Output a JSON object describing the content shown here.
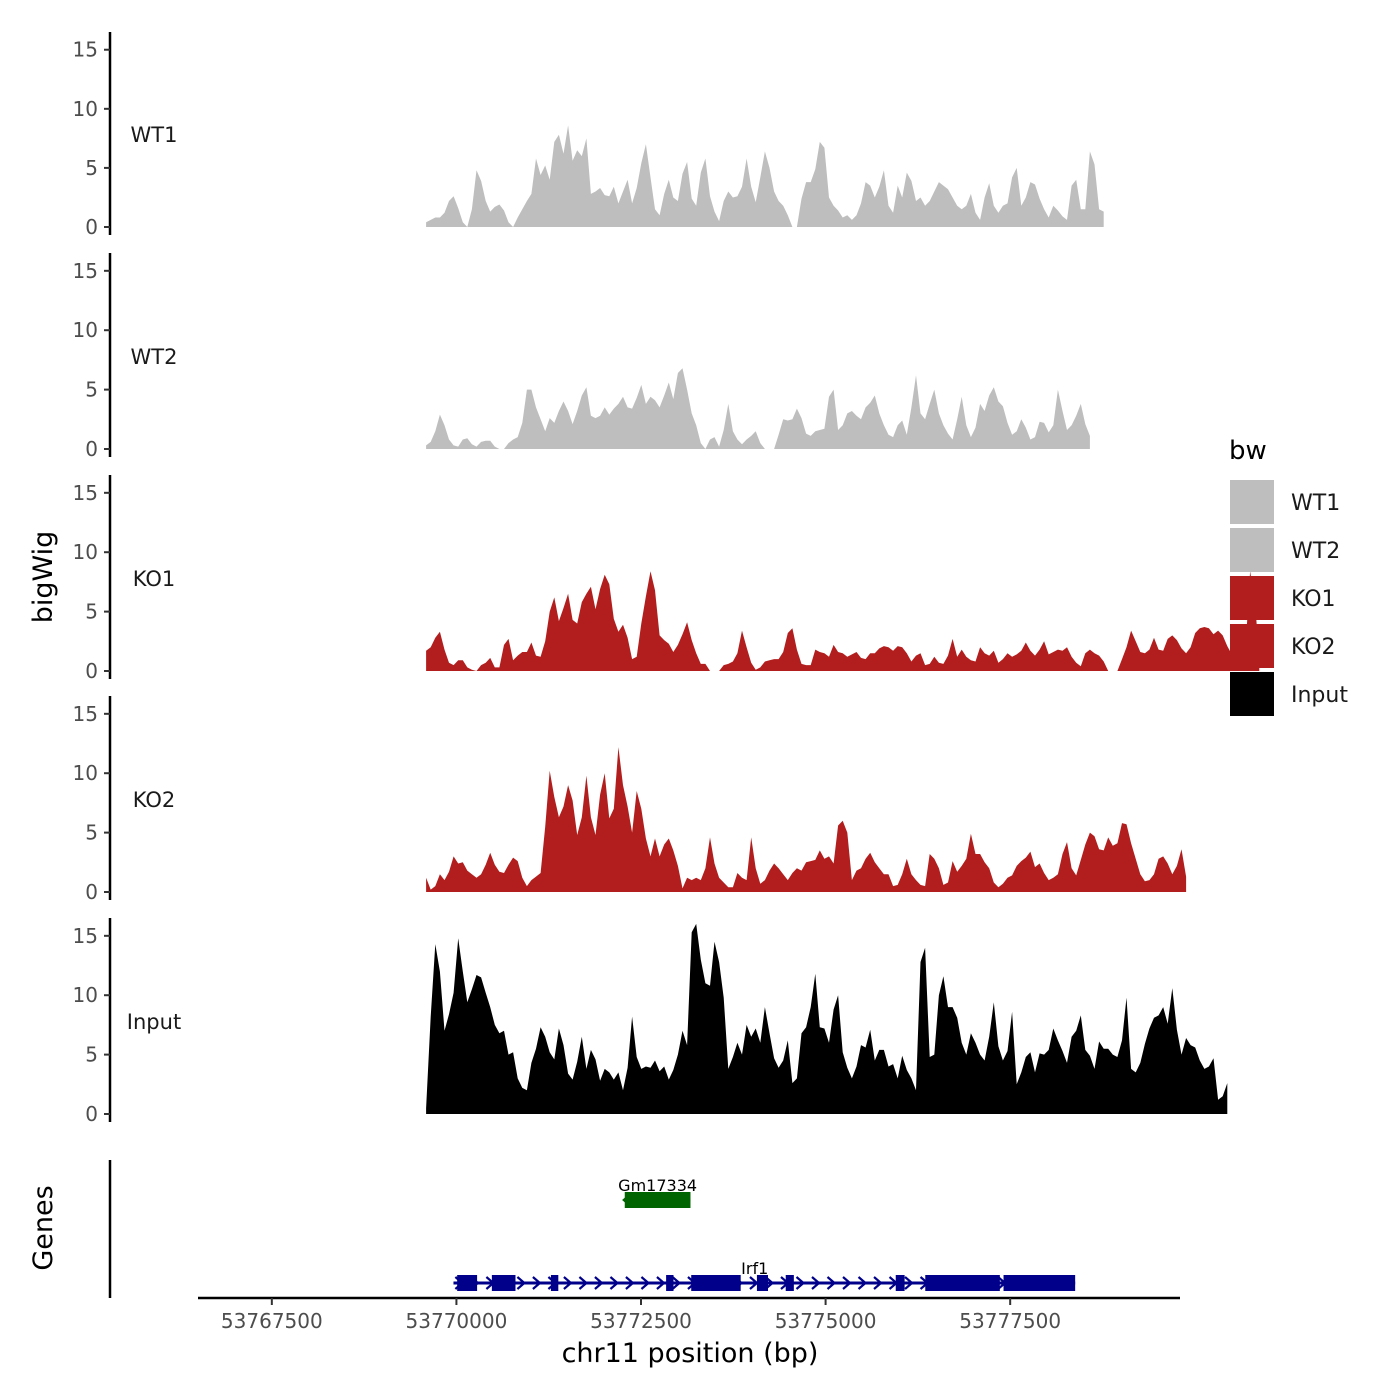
{
  "chart_data": {
    "type": "area",
    "y_axis_title": "bigWig",
    "genes_axis_title": "Genes",
    "x_axis_title": "chr11 position (bp)",
    "x_ticks": [
      "53767500",
      "53770000",
      "53772500",
      "53775000",
      "53777500"
    ],
    "x_tick_values": [
      53767500,
      53770000,
      53772500,
      53775000,
      53777500
    ],
    "x_range": [
      53766500,
      53779800
    ],
    "y_ticks": [
      "0",
      "5",
      "10",
      "15"
    ],
    "y_tick_values": [
      0,
      5,
      10,
      15
    ],
    "y_range": [
      0,
      16.5
    ],
    "legend": {
      "title": "bw",
      "entries": [
        "WT1",
        "WT2",
        "KO1",
        "KO2",
        "Input"
      ]
    },
    "colors": {
      "WT": "#bebebe",
      "KO": "#b21e1e",
      "Input": "#000000",
      "gene_minus": "#006400",
      "gene_plus": "#00008b"
    },
    "series": [
      {
        "name": "WT1",
        "color": "#bebebe",
        "x_start": 53769590,
        "x_step": 62,
        "values": [
          0.4,
          0.6,
          0.8,
          0.8,
          1.2,
          2.2,
          2.6,
          1.6,
          0.4,
          0,
          1.5,
          4.8,
          3.9,
          2.2,
          1.3,
          1.7,
          1.9,
          1.4,
          0.4,
          0,
          0.8,
          1.5,
          2.2,
          2.8,
          5.8,
          4.4,
          5.2,
          4.0,
          7.2,
          7.8,
          6.2,
          8.6,
          5.6,
          6.5,
          6.0,
          7.5,
          2.8,
          3.0,
          3.3,
          2.7,
          2.6,
          3.4,
          2.0,
          3.0,
          4.0,
          2.0,
          3.3,
          5.4,
          7.0,
          4.2,
          1.5,
          1.0,
          2.8,
          4.0,
          2.5,
          2.2,
          4.5,
          5.5,
          2.4,
          1.8,
          4.6,
          5.8,
          2.6,
          1.3,
          0.5,
          2.2,
          3.0,
          2.5,
          2.6,
          3.4,
          5.8,
          3.4,
          2.1,
          4.2,
          6.4,
          5.0,
          3.0,
          2.2,
          1.8,
          1.0,
          0,
          0,
          2.4,
          3.8,
          3.8,
          4.9,
          7.2,
          6.7,
          2.5,
          1.8,
          1.4,
          0.8,
          1.0,
          0.6,
          1.0,
          2.0,
          3.8,
          3.5,
          2.5,
          3.4,
          4.8,
          1.8,
          1.2,
          3.5,
          2.5,
          4.6,
          3.9,
          2.2,
          2.5,
          1.8,
          2.2,
          3.0,
          3.8,
          3.5,
          3.2,
          2.5,
          1.8,
          1.5,
          1.8,
          2.8,
          1.2,
          0.6,
          2.5,
          3.7,
          1.8,
          1.2,
          1.8,
          2.0,
          4.2,
          5.0,
          1.8,
          2.5,
          3.8,
          3.6,
          2.4,
          1.5,
          0.8,
          1.8,
          1.4,
          0.9,
          0.6,
          3.5,
          4.0,
          1.5,
          1.5,
          6.4,
          5.3,
          1.5,
          1.3
        ]
      },
      {
        "name": "WT2",
        "color": "#bebebe",
        "x_start": 53769590,
        "x_step": 62,
        "values": [
          0.3,
          0.6,
          1.5,
          2.9,
          2.0,
          0.8,
          0.3,
          0.2,
          0.8,
          0.9,
          0.4,
          0.2,
          0.6,
          0.7,
          0.7,
          0.2,
          0,
          0,
          0.5,
          0.8,
          1.0,
          2.2,
          5.0,
          5.0,
          3.5,
          2.5,
          1.5,
          2.6,
          2.2,
          3.2,
          4.0,
          3.2,
          2.1,
          3.2,
          4.5,
          5.2,
          2.8,
          2.6,
          2.8,
          3.5,
          2.9,
          3.4,
          3.8,
          4.4,
          3.5,
          3.4,
          4.3,
          5.4,
          3.8,
          4.4,
          4.1,
          3.5,
          4.5,
          5.6,
          4.2,
          6.4,
          6.8,
          5.0,
          3.0,
          2.0,
          0.5,
          0,
          0.8,
          1.0,
          0.2,
          1.6,
          3.8,
          1.5,
          0.8,
          0.4,
          0.8,
          1.1,
          1.5,
          0.5,
          0,
          0,
          0,
          1.2,
          2.5,
          2.4,
          2.5,
          3.4,
          2.6,
          1.3,
          1.1,
          1.5,
          1.6,
          1.7,
          4.4,
          5.0,
          1.6,
          2.0,
          3.0,
          3.2,
          2.8,
          2.5,
          3.5,
          3.9,
          4.5,
          3.0,
          2.0,
          1.2,
          1.0,
          2.0,
          2.4,
          1.2,
          3.5,
          6.2,
          3.0,
          2.5,
          3.8,
          5.0,
          3.0,
          2.0,
          1.3,
          0.8,
          2.5,
          4.4,
          2.0,
          1.0,
          1.8,
          3.8,
          3.2,
          4.5,
          5.2,
          4.0,
          3.6,
          2.2,
          1.2,
          1.5,
          2.5,
          1.8,
          0.8,
          1.0,
          2.3,
          2.2,
          1.4,
          2.0,
          5.0,
          3.2,
          1.6,
          2.0,
          2.8,
          3.8,
          2.1,
          1.1
        ]
      },
      {
        "name": "KO1",
        "color": "#b21e1e",
        "x_start": 53769590,
        "x_step": 62,
        "values": [
          1.7,
          2.0,
          2.8,
          3.3,
          1.8,
          0.7,
          0.5,
          0.9,
          0.9,
          0.3,
          0.1,
          0,
          0.5,
          0.7,
          1.1,
          0.3,
          0.3,
          2.2,
          2.7,
          0.9,
          1.3,
          1.6,
          1.6,
          2.4,
          1.3,
          1.2,
          2.5,
          5.0,
          6.2,
          4.2,
          5.3,
          6.5,
          4.3,
          4.0,
          5.8,
          6.5,
          7.1,
          5.2,
          6.9,
          8.1,
          7.3,
          4.4,
          3.3,
          3.9,
          2.8,
          1.0,
          1.2,
          4.0,
          6.3,
          8.4,
          6.8,
          3.0,
          2.6,
          2.3,
          1.6,
          2.2,
          3.1,
          4.1,
          2.6,
          1.5,
          0.6,
          0.6,
          0,
          0,
          0,
          0.5,
          0.6,
          0.8,
          1.5,
          3.4,
          2.0,
          0.7,
          0.1,
          0.3,
          0.8,
          0.9,
          1.0,
          1.0,
          1.6,
          3.2,
          3.6,
          1.8,
          0.6,
          0.5,
          0.5,
          1.8,
          1.6,
          1.5,
          1.2,
          2.2,
          1.6,
          1.5,
          1.2,
          1.4,
          1.6,
          1.1,
          1.0,
          1.5,
          1.5,
          1.9,
          2.1,
          2.0,
          1.7,
          2.1,
          2.0,
          1.5,
          0.8,
          1.3,
          1.5,
          0.5,
          0.6,
          1.2,
          0.7,
          0.6,
          1.3,
          2.7,
          1.2,
          1.8,
          1.2,
          0.9,
          0.8,
          2.0,
          1.5,
          1.3,
          1.7,
          0.7,
          1.0,
          1.5,
          1.2,
          1.4,
          1.7,
          2.4,
          1.7,
          1.3,
          1.8,
          2.5,
          1.4,
          1.6,
          1.8,
          1.7,
          2.0,
          1.2,
          0.7,
          0.4,
          1.5,
          1.8,
          1.5,
          1.3,
          0.8,
          0,
          0,
          0,
          1.0,
          2.0,
          3.4,
          2.5,
          1.6,
          1.5,
          1.8,
          2.8,
          1.8,
          1.7,
          2.7,
          3.0,
          2.6,
          1.9,
          1.5,
          2.0,
          3.2,
          3.6,
          3.7,
          3.6,
          3.1,
          3.4,
          3.0,
          2.1,
          1.4,
          1.2,
          1.0,
          2.0,
          8.4,
          6.0,
          1.2
        ]
      },
      {
        "name": "KO2",
        "color": "#b21e1e",
        "x_start": 53769590,
        "x_step": 62,
        "values": [
          1.2,
          0.2,
          0.5,
          1.5,
          1.0,
          1.7,
          3.0,
          2.4,
          2.5,
          1.8,
          1.5,
          1.2,
          1.5,
          2.3,
          3.3,
          2.3,
          1.7,
          1.6,
          2.3,
          2.9,
          2.6,
          1.2,
          0.5,
          1.0,
          1.3,
          1.6,
          5.5,
          10.2,
          8.0,
          6.3,
          7.2,
          9.0,
          7.7,
          4.8,
          6.3,
          9.8,
          6.3,
          4.8,
          8.2,
          10.0,
          6.2,
          7.0,
          12.2,
          9.0,
          7.2,
          5.0,
          8.5,
          7.0,
          4.5,
          3.0,
          4.5,
          3.0,
          4.0,
          4.5,
          3.5,
          2.2,
          0.3,
          1.2,
          1.0,
          1.2,
          1.0,
          2.0,
          4.6,
          2.4,
          1.2,
          0.8,
          0.4,
          0.4,
          1.6,
          1.2,
          1.0,
          4.6,
          2.0,
          0.7,
          1.0,
          1.8,
          2.4,
          2.0,
          1.5,
          1.0,
          1.6,
          2.0,
          1.8,
          2.5,
          2.6,
          2.7,
          3.5,
          2.8,
          3.0,
          2.4,
          5.6,
          6.0,
          5.0,
          1.0,
          1.8,
          2.0,
          2.8,
          3.3,
          2.5,
          2.0,
          1.5,
          1.5,
          0.5,
          0.6,
          1.5,
          2.8,
          1.5,
          1.0,
          0.6,
          0.5,
          3.2,
          2.8,
          2.0,
          0.6,
          0.8,
          2.6,
          1.7,
          2.2,
          2.8,
          4.9,
          3.2,
          3.2,
          2.5,
          2.0,
          0.8,
          0.4,
          0.7,
          1.2,
          1.4,
          2.2,
          2.6,
          2.9,
          3.4,
          2.1,
          2.4,
          1.6,
          1.0,
          1.2,
          1.5,
          3.2,
          4.2,
          2.0,
          1.4,
          2.7,
          4.0,
          5.0,
          4.7,
          3.6,
          3.5,
          4.6,
          3.9,
          4.1,
          5.8,
          5.7,
          4.1,
          2.8,
          1.5,
          0.9,
          1.0,
          1.5,
          2.8,
          3.0,
          2.4,
          1.5,
          2.2,
          3.6,
          1.3
        ]
      },
      {
        "name": "Input",
        "color": "#000000",
        "x_start": 53769590,
        "x_step": 62,
        "values": [
          0.5,
          8.2,
          14.3,
          12.0,
          7.0,
          8.4,
          10.2,
          14.8,
          12.0,
          9.4,
          10.5,
          11.7,
          11.5,
          10.2,
          9.0,
          7.5,
          6.8,
          7.0,
          5.0,
          5.2,
          3.0,
          2.2,
          2.0,
          4.3,
          5.5,
          7.3,
          6.5,
          5.2,
          4.6,
          7.2,
          5.8,
          3.4,
          2.9,
          4.4,
          6.5,
          3.8,
          5.4,
          4.6,
          2.8,
          3.8,
          3.5,
          2.9,
          3.5,
          2.0,
          3.9,
          8.2,
          4.8,
          3.8,
          4.0,
          3.9,
          4.5,
          3.6,
          4.0,
          2.9,
          3.7,
          5.0,
          7.0,
          5.8,
          15.3,
          16.0,
          13.0,
          11.0,
          10.8,
          14.5,
          12.8,
          9.8,
          3.8,
          4.8,
          6.0,
          5.0,
          7.5,
          6.5,
          7.2,
          6.0,
          9.0,
          6.8,
          4.7,
          3.9,
          4.5,
          6.2,
          2.6,
          3.0,
          6.8,
          7.3,
          9.0,
          11.8,
          7.3,
          7.2,
          6.0,
          8.8,
          10.0,
          5.2,
          3.9,
          3.0,
          4.0,
          5.8,
          5.6,
          7.1,
          4.5,
          5.4,
          5.4,
          4.0,
          4.2,
          3.0,
          4.9,
          3.7,
          3.0,
          2.0,
          12.8,
          14.0,
          4.8,
          5.0,
          10.0,
          11.6,
          9.0,
          9.0,
          8.1,
          6.0,
          5.0,
          6.8,
          6.0,
          5.0,
          4.5,
          6.5,
          9.4,
          5.7,
          4.5,
          5.3,
          8.6,
          2.5,
          3.5,
          4.8,
          5.2,
          3.5,
          5.1,
          5.0,
          5.4,
          7.2,
          6.2,
          5.3,
          4.3,
          6.5,
          7.0,
          8.3,
          5.4,
          4.9,
          3.8,
          6.1,
          5.5,
          5.5,
          5.0,
          4.8,
          6.2,
          9.8,
          3.8,
          3.5,
          4.3,
          5.9,
          7.2,
          8.1,
          8.3,
          9.0,
          7.6,
          10.6,
          7.1,
          5.0,
          6.4,
          5.8,
          5.6,
          4.5,
          3.8,
          4.0,
          4.7,
          1.2,
          1.5,
          2.6
        ]
      }
    ],
    "genes": [
      {
        "name": "Gm17334",
        "strand": "-",
        "start": 53772280,
        "end": 53773170,
        "color": "#006400",
        "exons": [
          [
            53772280,
            53773170
          ]
        ]
      },
      {
        "name": "Irf1",
        "strand": "+",
        "start": 53769960,
        "end": 53778380,
        "color": "#00008b",
        "exons": [
          [
            53770010,
            53770280
          ],
          [
            53770480,
            53770800
          ],
          [
            53771280,
            53771380
          ],
          [
            53772840,
            53772940
          ],
          [
            53773180,
            53773850
          ],
          [
            53774070,
            53774220
          ],
          [
            53774460,
            53774570
          ],
          [
            53775950,
            53776070
          ],
          [
            53776350,
            53777360
          ],
          [
            53777410,
            53778380
          ]
        ]
      }
    ]
  }
}
